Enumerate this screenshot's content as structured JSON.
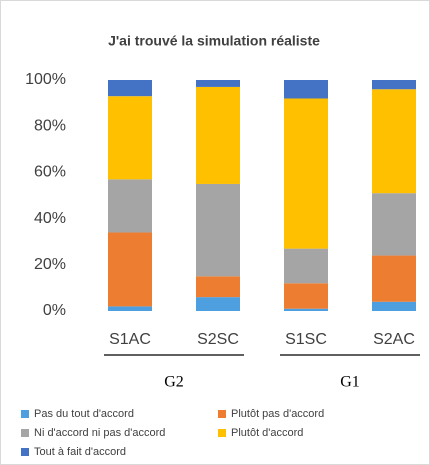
{
  "chart_data": {
    "type": "stacked_bar",
    "title": "J'ai trouvé la simulation réaliste",
    "categories": [
      "S1AC",
      "S2SC",
      "S1SC",
      "S2AC"
    ],
    "groups": [
      "G2",
      "G1"
    ],
    "series": [
      {
        "name": "Pas du tout d'accord",
        "color": "#4e9fdf",
        "values": [
          2,
          6,
          1,
          4
        ]
      },
      {
        "name": "Plutôt pas d'accord",
        "color": "#ed7d31",
        "values": [
          32,
          9,
          11,
          20
        ]
      },
      {
        "name": "Ni d'accord ni pas d'accord",
        "color": "#a5a5a5",
        "values": [
          23,
          40,
          15,
          27
        ]
      },
      {
        "name": "Plutôt d'accord",
        "color": "#ffc000",
        "values": [
          36,
          42,
          65,
          45
        ]
      },
      {
        "name": "Tout à fait d'accord",
        "color": "#4472c4",
        "values": [
          7,
          3,
          8,
          4
        ]
      }
    ],
    "ylim": [
      0,
      100
    ],
    "yticks": [
      {
        "value": 0,
        "label": "0%"
      },
      {
        "value": 20,
        "label": "20%"
      },
      {
        "value": 40,
        "label": "40%"
      },
      {
        "value": 60,
        "label": "60%"
      },
      {
        "value": 80,
        "label": "80%"
      },
      {
        "value": 100,
        "label": "100%"
      }
    ],
    "grid": false
  }
}
